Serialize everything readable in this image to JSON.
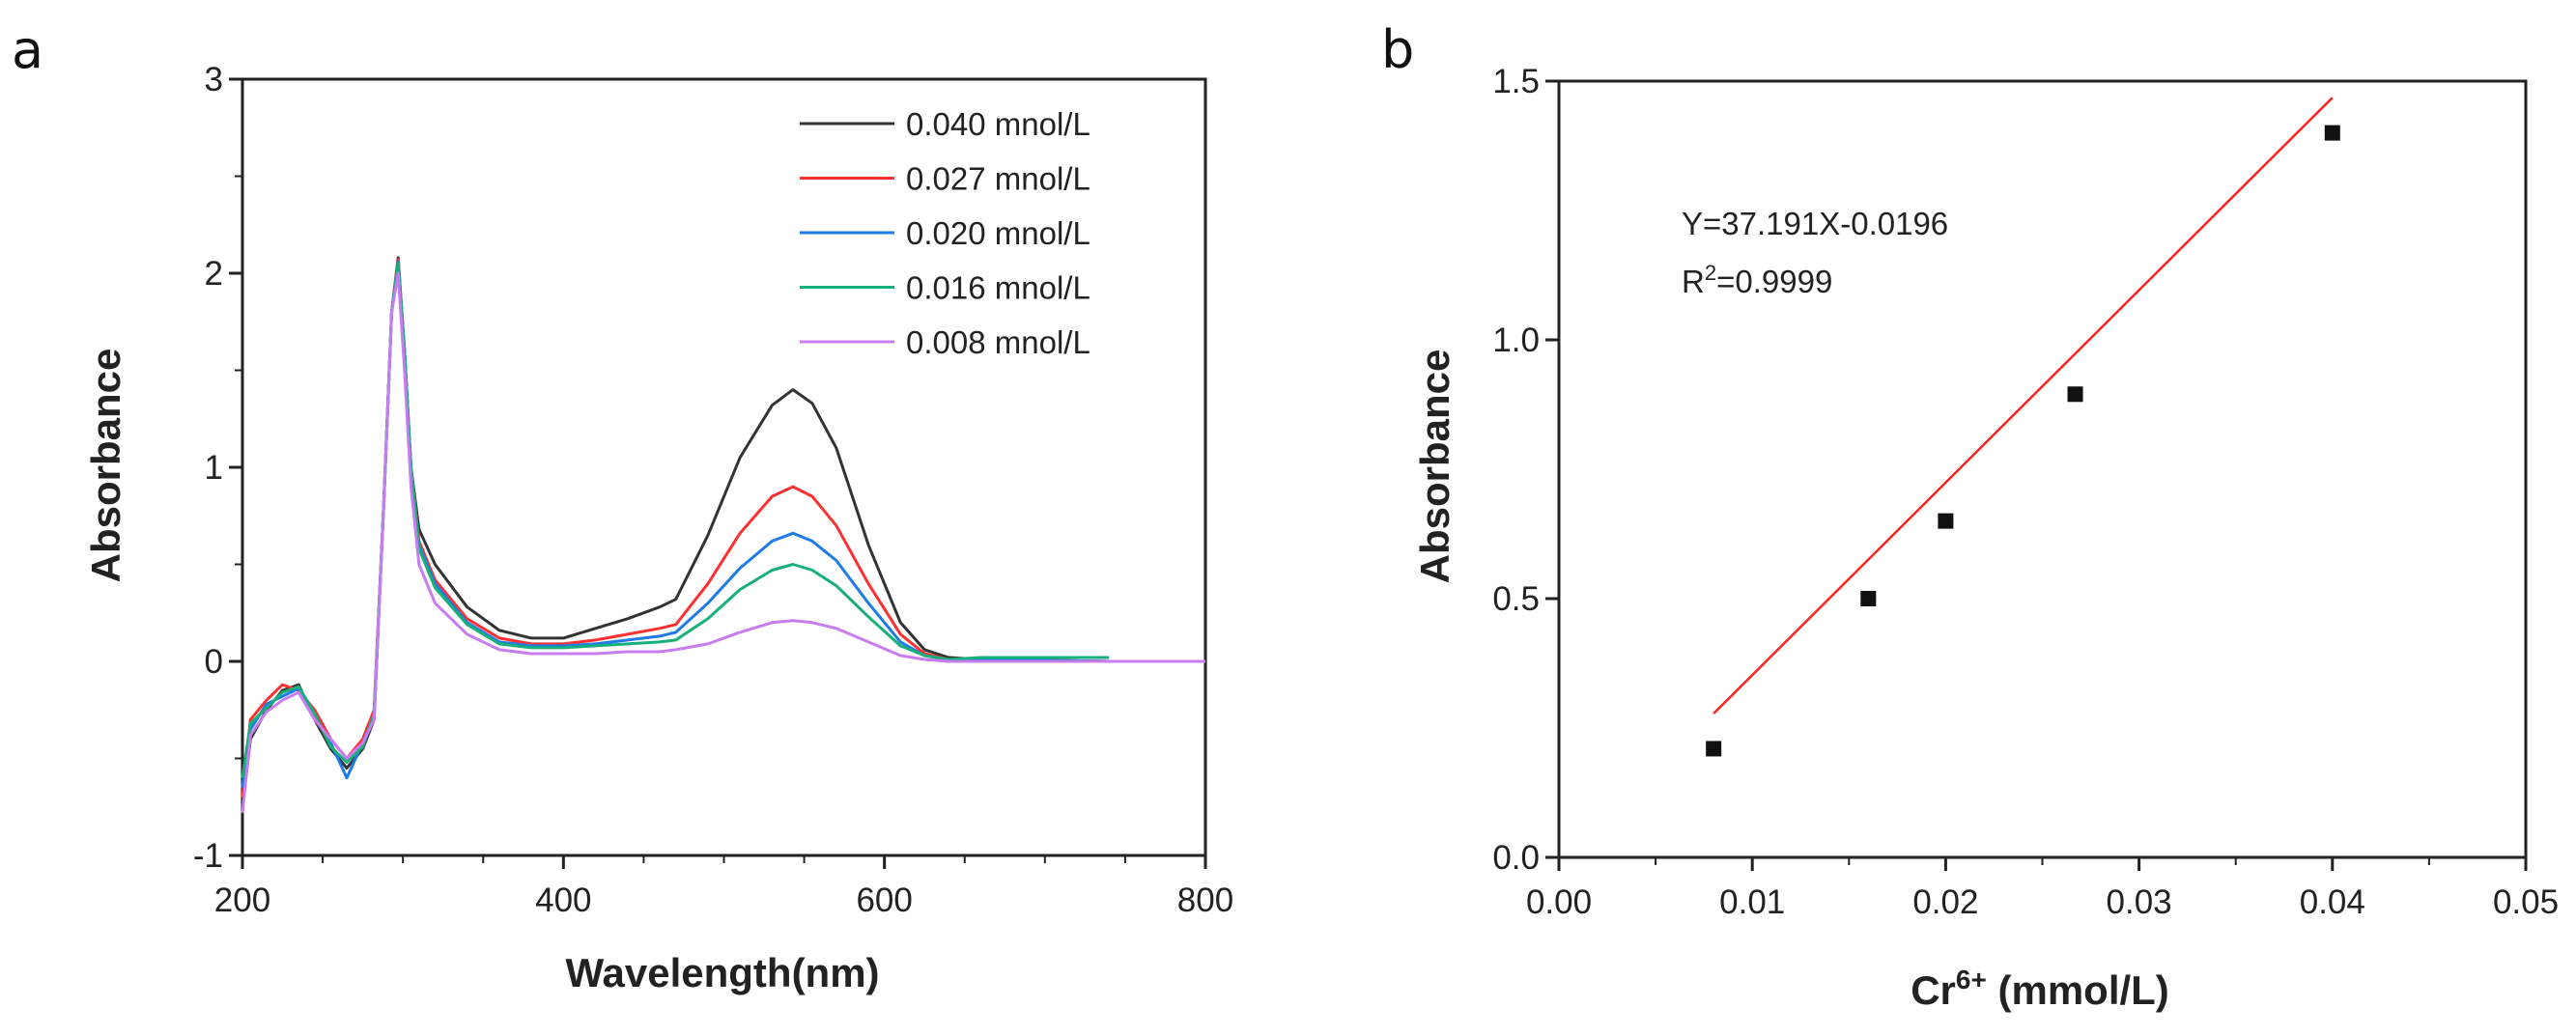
{
  "chart_data": [
    {
      "type": "line",
      "panel_label": "a",
      "xlabel": "Wavelength(nm)",
      "ylabel": "Absorbance",
      "xlim": [
        200,
        800
      ],
      "ylim": [
        -1,
        3
      ],
      "xticks": [
        "200",
        "400",
        "600",
        "800"
      ],
      "yticks": [
        "-1",
        "0",
        "1",
        "2",
        "3"
      ],
      "legend_position": "top-right",
      "x": [
        200,
        205,
        215,
        225,
        235,
        245,
        255,
        265,
        275,
        282,
        288,
        293,
        297,
        301,
        305,
        310,
        320,
        340,
        360,
        380,
        400,
        420,
        440,
        460,
        470,
        490,
        510,
        530,
        543,
        555,
        570,
        590,
        610,
        625,
        640,
        660,
        740,
        800
      ],
      "series": [
        {
          "name": "0.040 mnol/L",
          "color": "#333333",
          "values": [
            -0.75,
            -0.4,
            -0.25,
            -0.15,
            -0.12,
            -0.3,
            -0.45,
            -0.55,
            -0.45,
            -0.3,
            0.8,
            1.8,
            2.08,
            1.6,
            1.0,
            0.68,
            0.5,
            0.28,
            0.16,
            0.12,
            0.12,
            0.17,
            0.22,
            0.28,
            0.32,
            0.65,
            1.05,
            1.32,
            1.4,
            1.33,
            1.1,
            0.6,
            0.2,
            0.06,
            0.02,
            0.01,
            0.0,
            0.0
          ]
        },
        {
          "name": "0.027 mnol/L",
          "color": "#ff3030",
          "values": [
            -0.7,
            -0.3,
            -0.2,
            -0.12,
            -0.15,
            -0.25,
            -0.4,
            -0.5,
            -0.4,
            -0.25,
            0.8,
            1.8,
            2.07,
            1.6,
            1.0,
            0.62,
            0.42,
            0.22,
            0.12,
            0.09,
            0.09,
            0.11,
            0.14,
            0.17,
            0.19,
            0.4,
            0.66,
            0.85,
            0.9,
            0.85,
            0.7,
            0.4,
            0.14,
            0.04,
            0.01,
            0.01,
            0.0,
            0.0
          ]
        },
        {
          "name": "0.020 mnol/L",
          "color": "#1e7be8",
          "values": [
            -0.65,
            -0.35,
            -0.22,
            -0.18,
            -0.14,
            -0.28,
            -0.42,
            -0.6,
            -0.42,
            -0.28,
            0.8,
            1.8,
            2.06,
            1.6,
            1.0,
            0.6,
            0.4,
            0.2,
            0.1,
            0.08,
            0.08,
            0.09,
            0.11,
            0.13,
            0.15,
            0.3,
            0.48,
            0.62,
            0.66,
            0.62,
            0.52,
            0.3,
            0.1,
            0.03,
            0.01,
            0.01,
            0.0,
            0.0
          ]
        },
        {
          "name": "0.016 mnol/L",
          "color": "#18b07a",
          "values": [
            -0.6,
            -0.32,
            -0.24,
            -0.16,
            -0.13,
            -0.27,
            -0.44,
            -0.52,
            -0.44,
            -0.27,
            0.8,
            1.8,
            2.05,
            1.6,
            1.0,
            0.58,
            0.38,
            0.19,
            0.09,
            0.07,
            0.07,
            0.08,
            0.09,
            0.1,
            0.11,
            0.22,
            0.37,
            0.47,
            0.5,
            0.47,
            0.39,
            0.23,
            0.08,
            0.03,
            0.01,
            0.02,
            0.02,
            null
          ]
        },
        {
          "name": "0.008 mnol/L",
          "color": "#c77cf0",
          "values": [
            -0.78,
            -0.38,
            -0.26,
            -0.2,
            -0.16,
            -0.3,
            -0.4,
            -0.5,
            -0.42,
            -0.3,
            0.8,
            1.8,
            2.0,
            1.5,
            0.9,
            0.5,
            0.3,
            0.14,
            0.06,
            0.04,
            0.04,
            0.04,
            0.05,
            0.05,
            0.06,
            0.09,
            0.15,
            0.2,
            0.21,
            0.2,
            0.17,
            0.1,
            0.03,
            0.01,
            0.0,
            0.0,
            0.0,
            0.0
          ]
        }
      ]
    },
    {
      "type": "scatter",
      "panel_label": "b",
      "xlabel_main": "Cr",
      "xlabel_sup": "6+",
      "xlabel_rest": " (mmol/L)",
      "ylabel": "Absorbance",
      "xlim": [
        0,
        0.05
      ],
      "ylim": [
        0,
        1.5
      ],
      "xticks": [
        "0.00",
        "0.01",
        "0.02",
        "0.03",
        "0.04",
        "0.05"
      ],
      "yticks": [
        "0.0",
        "0.5",
        "1.0",
        "1.5"
      ],
      "points": [
        [
          0.008,
          0.21
        ],
        [
          0.016,
          0.5
        ],
        [
          0.02,
          0.65
        ],
        [
          0.0267,
          0.895
        ],
        [
          0.04,
          1.4
        ]
      ],
      "fit": {
        "slope": 37.191,
        "intercept": -0.0196,
        "color": "#ff2020"
      },
      "equation": "Y=37.191X-0.0196",
      "r2_main": "R",
      "r2_sup": "2",
      "r2_rest": "=0.9999"
    }
  ]
}
